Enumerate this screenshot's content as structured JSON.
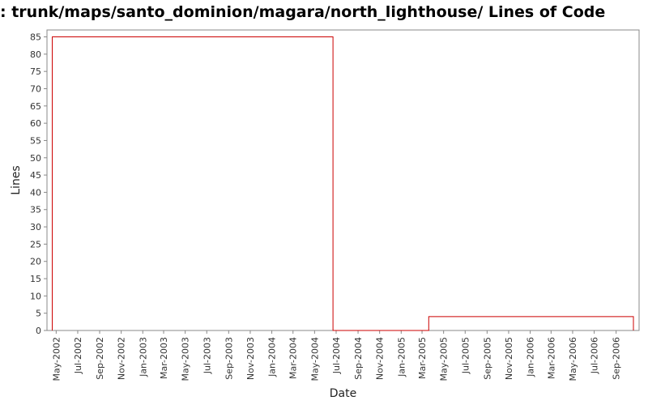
{
  "chart_data": {
    "type": "line",
    "title": ": trunk/maps/santo_dominion/magara/north_lighthouse/ Lines of Code",
    "xlabel": "Date",
    "ylabel": "Lines",
    "ylim": [
      0,
      87
    ],
    "xlim": [
      "2002-04-05",
      "2006-11-05"
    ],
    "y_ticks": [
      0,
      5,
      10,
      15,
      20,
      25,
      30,
      35,
      40,
      45,
      50,
      55,
      60,
      65,
      70,
      75,
      80,
      85
    ],
    "x_ticks": [
      {
        "label": "May-2002",
        "date": "2002-05-01"
      },
      {
        "label": "Jul-2002",
        "date": "2002-07-01"
      },
      {
        "label": "Sep-2002",
        "date": "2002-09-01"
      },
      {
        "label": "Nov-2002",
        "date": "2002-11-01"
      },
      {
        "label": "Jan-2003",
        "date": "2003-01-01"
      },
      {
        "label": "Mar-2003",
        "date": "2003-03-01"
      },
      {
        "label": "May-2003",
        "date": "2003-05-01"
      },
      {
        "label": "Jul-2003",
        "date": "2003-07-01"
      },
      {
        "label": "Sep-2003",
        "date": "2003-09-01"
      },
      {
        "label": "Nov-2003",
        "date": "2003-11-01"
      },
      {
        "label": "Jan-2004",
        "date": "2004-01-01"
      },
      {
        "label": "Mar-2004",
        "date": "2004-03-01"
      },
      {
        "label": "May-2004",
        "date": "2004-05-01"
      },
      {
        "label": "Jul-2004",
        "date": "2004-07-01"
      },
      {
        "label": "Sep-2004",
        "date": "2004-09-01"
      },
      {
        "label": "Nov-2004",
        "date": "2004-11-01"
      },
      {
        "label": "Jan-2005",
        "date": "2005-01-01"
      },
      {
        "label": "Mar-2005",
        "date": "2005-03-01"
      },
      {
        "label": "May-2005",
        "date": "2005-05-01"
      },
      {
        "label": "Jul-2005",
        "date": "2005-07-01"
      },
      {
        "label": "Sep-2005",
        "date": "2005-09-01"
      },
      {
        "label": "Nov-2005",
        "date": "2005-11-01"
      },
      {
        "label": "Jan-2006",
        "date": "2006-01-01"
      },
      {
        "label": "Mar-2006",
        "date": "2006-03-01"
      },
      {
        "label": "May-2006",
        "date": "2006-05-01"
      },
      {
        "label": "Jul-2006",
        "date": "2006-07-01"
      },
      {
        "label": "Sep-2006",
        "date": "2006-09-01"
      }
    ],
    "series": [
      {
        "color": "#cc0000",
        "points": [
          {
            "date": "2002-04-20",
            "y": 0
          },
          {
            "date": "2002-04-20",
            "y": 85
          },
          {
            "date": "2004-06-22",
            "y": 85
          },
          {
            "date": "2004-06-22",
            "y": 0
          },
          {
            "date": "2005-03-20",
            "y": 0
          },
          {
            "date": "2005-03-20",
            "y": 4
          },
          {
            "date": "2006-10-20",
            "y": 4
          },
          {
            "date": "2006-10-20",
            "y": 0
          }
        ]
      }
    ],
    "grid": false,
    "legend": "none"
  }
}
